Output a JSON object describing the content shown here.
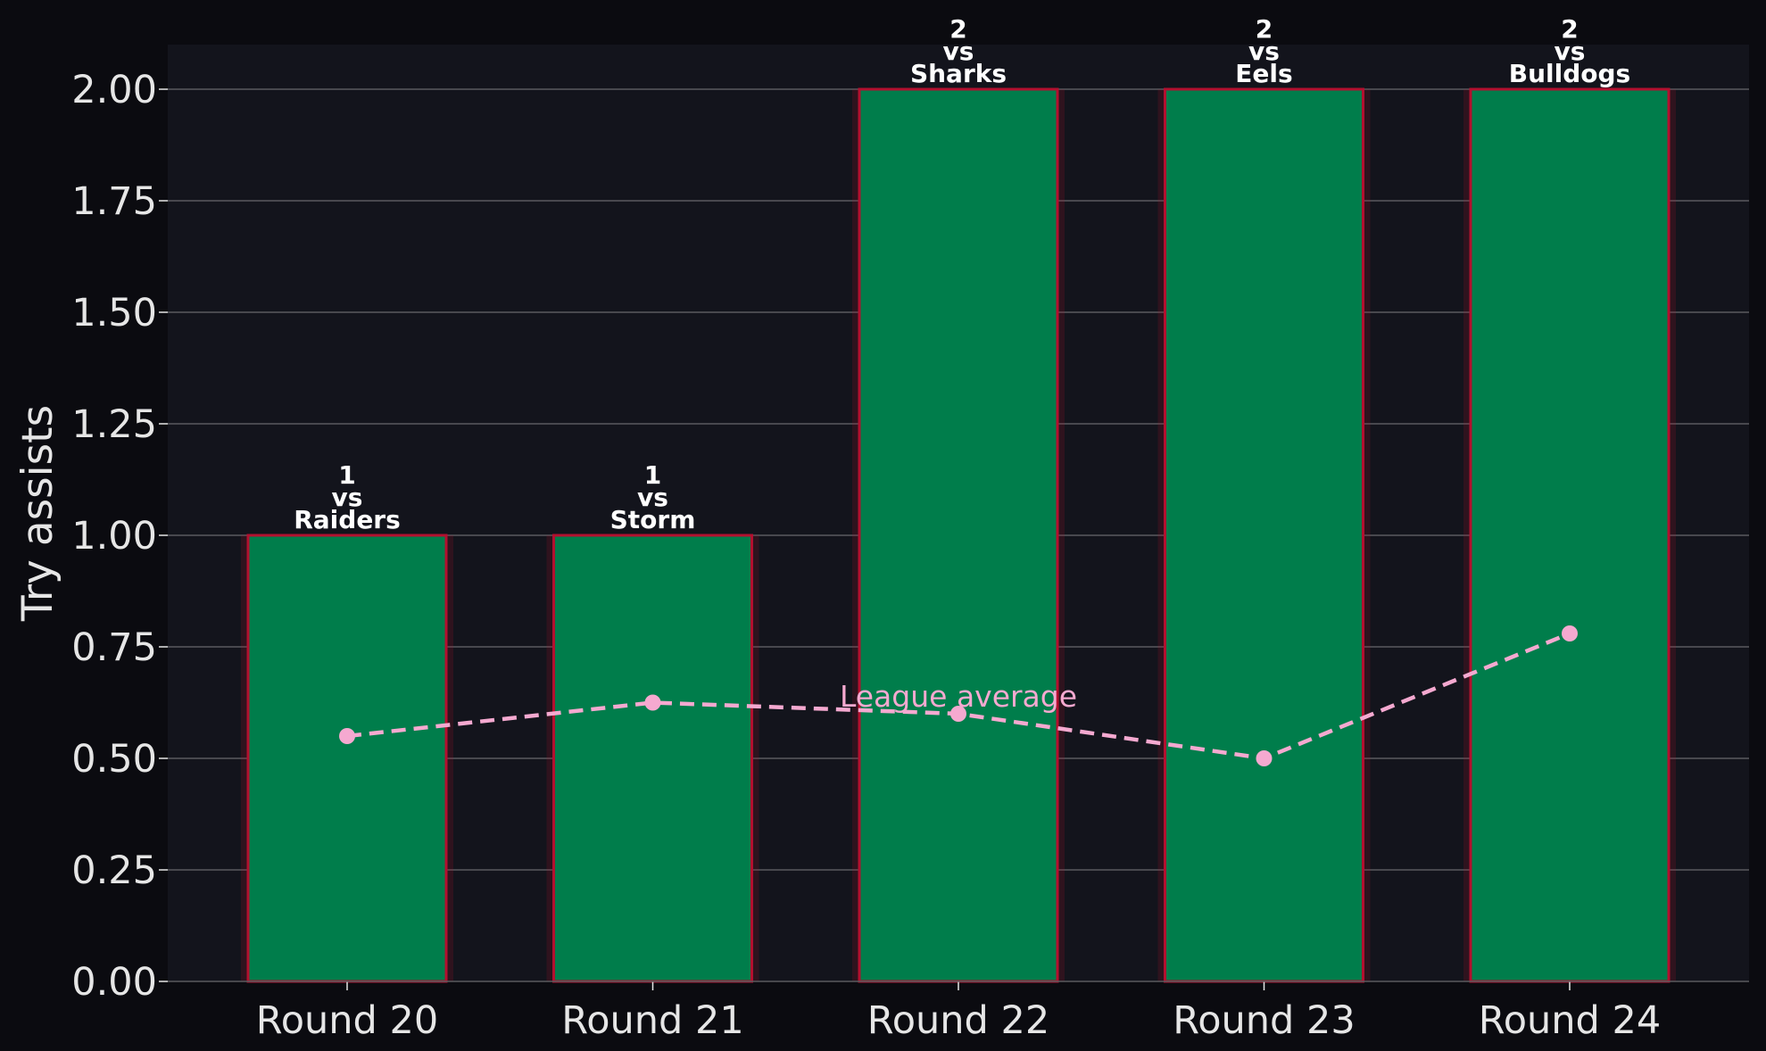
{
  "chart_data": {
    "type": "bar",
    "categories": [
      "Round 20",
      "Round 21",
      "Round 22",
      "Round 23",
      "Round 24"
    ],
    "values": [
      1,
      1,
      2,
      2,
      2
    ],
    "bar_labels": [
      [
        "1",
        "vs",
        "Raiders"
      ],
      [
        "1",
        "vs",
        "Storm"
      ],
      [
        "2",
        "vs",
        "Sharks"
      ],
      [
        "2",
        "vs",
        "Eels"
      ],
      [
        "2",
        "vs",
        "Bulldogs"
      ]
    ],
    "overlay_line": {
      "values": [
        0.55,
        0.625,
        0.6,
        0.5,
        0.78
      ],
      "annotation": "League average",
      "annotation_at_index": 2,
      "style": "dashed-with-markers"
    },
    "xlabel": "",
    "ylabel": "Try assists",
    "ylim": [
      0,
      2.1
    ],
    "yticks": [
      "0.00",
      "0.25",
      "0.50",
      "0.75",
      "1.00",
      "1.25",
      "1.50",
      "1.75",
      "2.00"
    ],
    "grid": "horizontal",
    "colors": {
      "figure_background": "#0b0b10",
      "plot_background": "#13141c",
      "bar_fill": "#007d4b",
      "bar_edge": "#b3102f",
      "line_color": "#f5a9d0",
      "grid_color": "#5a5a5e",
      "text_color": "#e6e6e6",
      "label_color": "#ffffff"
    }
  }
}
